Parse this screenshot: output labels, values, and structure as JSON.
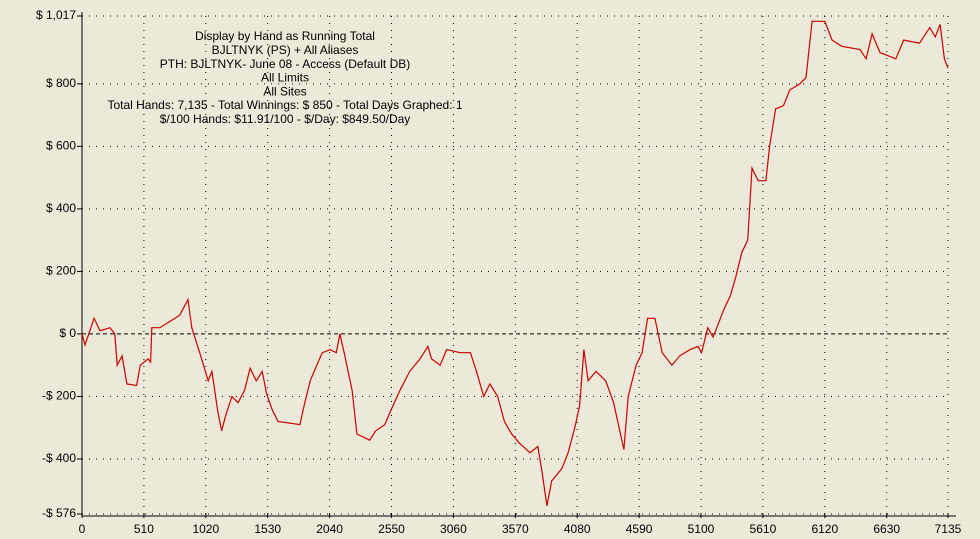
{
  "chart_data": {
    "type": "line",
    "annotations": [
      "Display by Hand as Running Total",
      "BJLTNYK (PS) + All Aliases",
      "PTH: BJLTNYK- June 08 - Access (Default DB)",
      "All Limits",
      "All Sites",
      "Total Hands: 7,135 - Total Winnings: $ 850 - Total Days Graphed: 1",
      "$/100 Hands: $11.91/100 - $/Day: $849.50/Day"
    ],
    "x": [
      0,
      25,
      100,
      148,
      230,
      270,
      290,
      330,
      370,
      450,
      480,
      545,
      565,
      575,
      640,
      725,
      805,
      873,
      905,
      970,
      1040,
      1070,
      1120,
      1150,
      1185,
      1235,
      1285,
      1340,
      1385,
      1435,
      1485,
      1520,
      1565,
      1615,
      1795,
      1830,
      1880,
      1945,
      1980,
      2045,
      2095,
      2125,
      2165,
      2225,
      2265,
      2370,
      2420,
      2495,
      2550,
      2620,
      2700,
      2785,
      2850,
      2880,
      2950,
      3005,
      3115,
      3200,
      3250,
      3310,
      3360,
      3425,
      3480,
      3540,
      3605,
      3690,
      3755,
      3790,
      3830,
      3870,
      3955,
      4005,
      4060,
      4100,
      4135,
      4170,
      4235,
      4315,
      4380,
      4465,
      4500,
      4565,
      4615,
      4660,
      4720,
      4780,
      4860,
      4925,
      5010,
      5075,
      5105,
      5155,
      5200,
      5290,
      5340,
      5385,
      5435,
      5485,
      5520,
      5570,
      5635,
      5665,
      5715,
      5780,
      5830,
      5915,
      5965,
      6015,
      6120,
      6180,
      6260,
      6410,
      6460,
      6510,
      6575,
      6705,
      6770,
      6900,
      6985,
      7030,
      7070,
      7105,
      7135
    ],
    "series": [
      {
        "name": "Running Total",
        "color": "#cc0000",
        "values": [
          0,
          -35,
          50,
          10,
          20,
          0,
          -100,
          -70,
          -160,
          -165,
          -100,
          -80,
          -90,
          20,
          20,
          40,
          60,
          110,
          20,
          -60,
          -150,
          -120,
          -250,
          -310,
          -260,
          -200,
          -220,
          -180,
          -110,
          -150,
          -120,
          -190,
          -240,
          -280,
          -290,
          -230,
          -150,
          -90,
          -60,
          -50,
          -60,
          0,
          -70,
          -180,
          -320,
          -340,
          -310,
          -290,
          -240,
          -180,
          -120,
          -80,
          -40,
          -80,
          -100,
          -50,
          -60,
          -60,
          -120,
          -200,
          -160,
          -200,
          -280,
          -320,
          -350,
          -380,
          -360,
          -440,
          -550,
          -470,
          -430,
          -380,
          -300,
          -230,
          -50,
          -150,
          -120,
          -150,
          -220,
          -370,
          -200,
          -100,
          -60,
          50,
          50,
          -60,
          -100,
          -70,
          -50,
          -40,
          -60,
          20,
          -10,
          80,
          120,
          180,
          260,
          300,
          530,
          490,
          490,
          600,
          720,
          730,
          780,
          800,
          820,
          1000,
          1000,
          940,
          920,
          910,
          880,
          960,
          900,
          880,
          940,
          930,
          980,
          950,
          990,
          880,
          850
        ]
      }
    ],
    "xlim": [
      0,
      7135
    ],
    "xticks": [
      0,
      510,
      1020,
      1530,
      2040,
      2550,
      3060,
      3570,
      4080,
      4590,
      5100,
      5610,
      6120,
      6630,
      7135
    ],
    "ylim": [
      -576,
      1017
    ],
    "yticks": [
      {
        "value": -576,
        "label": "-$ 576"
      },
      {
        "value": -400,
        "label": "-$ 400"
      },
      {
        "value": -200,
        "label": "-$ 200"
      },
      {
        "value": 0,
        "label": "$ 0"
      },
      {
        "value": 200,
        "label": "$ 200"
      },
      {
        "value": 400,
        "label": "$ 400"
      },
      {
        "value": 600,
        "label": "$ 600"
      },
      {
        "value": 800,
        "label": "$ 800"
      },
      {
        "value": 1017,
        "label": "$ 1,017"
      }
    ],
    "grid": true
  }
}
